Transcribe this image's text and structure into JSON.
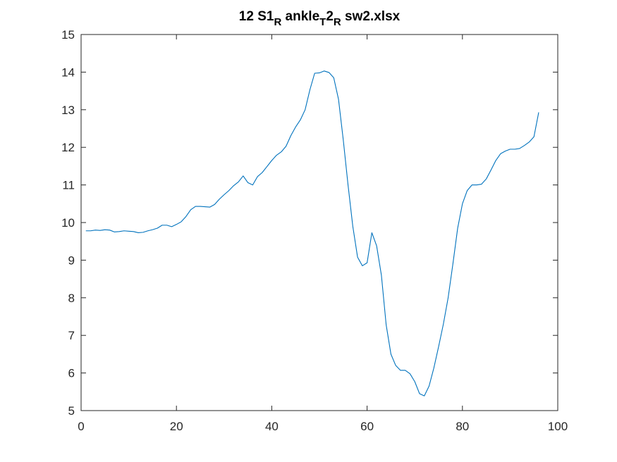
{
  "chart_data": {
    "type": "line",
    "title": {
      "t1": "12 S1",
      "s1": "R",
      "t2": " ankle",
      "s2": "T",
      "t3": "2",
      "s3": "R",
      "t4": " sw2.xlsx"
    },
    "xlabel": "",
    "ylabel": "",
    "xlim": [
      0,
      100
    ],
    "ylim": [
      5,
      15
    ],
    "xticks": [
      0,
      20,
      40,
      60,
      80,
      100
    ],
    "yticks": [
      5,
      6,
      7,
      8,
      9,
      10,
      11,
      12,
      13,
      14,
      15
    ],
    "grid": false,
    "legend": "none",
    "series": [
      {
        "color": "#0072BD",
        "x": [
          1,
          2,
          3,
          4,
          5,
          6,
          7,
          8,
          9,
          10,
          11,
          12,
          13,
          14,
          15,
          16,
          17,
          18,
          19,
          20,
          21,
          22,
          23,
          24,
          25,
          26,
          27,
          28,
          29,
          30,
          31,
          32,
          33,
          34,
          35,
          36,
          37,
          38,
          39,
          40,
          41,
          42,
          43,
          44,
          45,
          46,
          47,
          48,
          49,
          50,
          51,
          52,
          53,
          54,
          55,
          56,
          57,
          58,
          59,
          60,
          61,
          62,
          63,
          64,
          65,
          66,
          67,
          68,
          69,
          70,
          71,
          72,
          73,
          74,
          75,
          76,
          77,
          78,
          79,
          80,
          81,
          82,
          83,
          84,
          85,
          86,
          87,
          88,
          89,
          90,
          91,
          92,
          93,
          94,
          95,
          96
        ],
        "y": [
          9.78,
          9.78,
          9.8,
          9.79,
          9.81,
          9.8,
          9.75,
          9.76,
          9.78,
          9.77,
          9.76,
          9.73,
          9.74,
          9.78,
          9.81,
          9.85,
          9.93,
          9.93,
          9.89,
          9.95,
          10.02,
          10.16,
          10.34,
          10.43,
          10.43,
          10.42,
          10.41,
          10.48,
          10.62,
          10.74,
          10.85,
          10.98,
          11.08,
          11.24,
          11.06,
          11.0,
          11.22,
          11.33,
          11.49,
          11.65,
          11.79,
          11.88,
          12.03,
          12.31,
          12.54,
          12.73,
          13.0,
          13.53,
          13.97,
          13.98,
          14.03,
          13.99,
          13.85,
          13.28,
          12.2,
          11.0,
          9.9,
          9.08,
          8.85,
          8.93,
          9.73,
          9.38,
          8.6,
          7.28,
          6.5,
          6.2,
          6.07,
          6.07,
          5.98,
          5.77,
          5.45,
          5.39,
          5.65,
          6.13,
          6.7,
          7.3,
          8.0,
          8.9,
          9.85,
          10.5,
          10.85,
          11.0,
          11.0,
          11.02,
          11.16,
          11.4,
          11.65,
          11.83,
          11.9,
          11.95,
          11.95,
          11.97,
          12.05,
          12.14,
          12.28,
          12.93
        ]
      }
    ]
  }
}
